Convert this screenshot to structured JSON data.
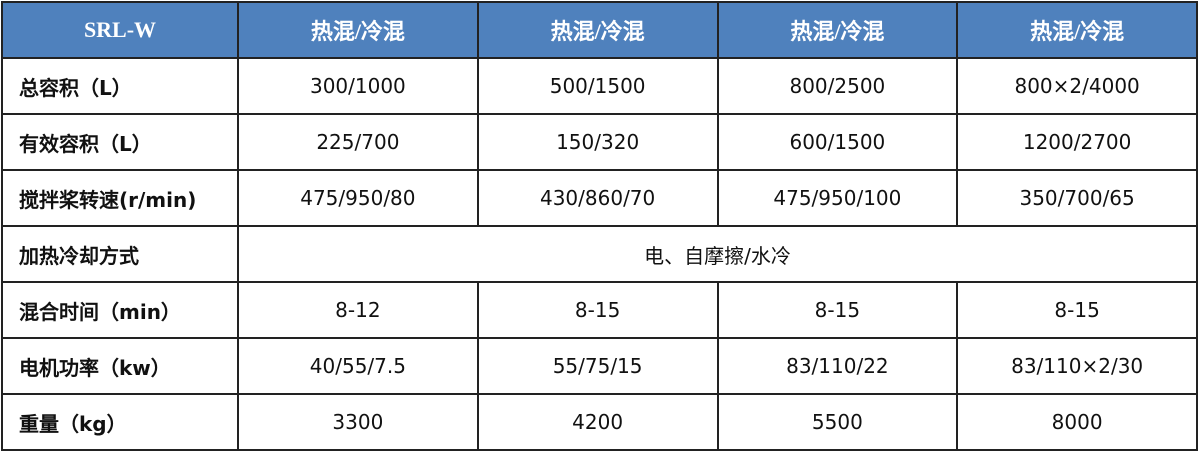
{
  "header": [
    "SRL-W",
    "热混/冷混",
    "热混/冷混",
    "热混/冷混",
    "热混/冷混"
  ],
  "rows": [
    {
      "label": "总容积（L）",
      "values": [
        "300/1000",
        "500/1500",
        "800/2500",
        "800×2/4000"
      ]
    },
    {
      "label": "有效容积（L）",
      "values": [
        "225/700",
        "150/320",
        "600/1500",
        "1200/2700"
      ]
    },
    {
      "label": "搅拌桨转速(r/min)",
      "values": [
        "475/950/80",
        "430/860/70",
        "475/950/100",
        "350/700/65"
      ]
    },
    {
      "label": "加热冷却方式",
      "merged": "电、自摩擦/水冷"
    },
    {
      "label": "混合时间（min）",
      "values": [
        "8-12",
        "8-15",
        "8-15",
        "8-15"
      ]
    },
    {
      "label": "电机功率（kw）",
      "values": [
        "40/55/7.5",
        "55/75/15",
        "83/110/22",
        "83/110×2/30"
      ]
    },
    {
      "label": "重量（kg）",
      "values": [
        "3300",
        "4200",
        "5500",
        "8000"
      ]
    }
  ],
  "colors": {
    "header_bg": "#4f81bd"
  }
}
